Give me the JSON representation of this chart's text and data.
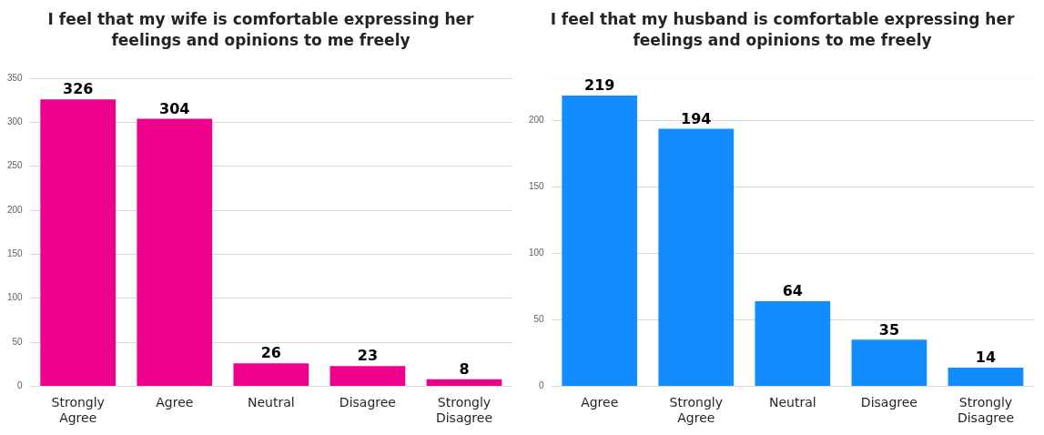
{
  "chart_data": [
    {
      "type": "bar",
      "title": "I feel that my wife is comfortable expressing her feelings and opinions to me freely",
      "categories": [
        "Strongly Agree",
        "Agree",
        "Neutral",
        "Disagree",
        "Strongly Disagree"
      ],
      "values": [
        326,
        304,
        26,
        23,
        8
      ],
      "color": "#ec008c",
      "ylim": [
        0,
        350
      ],
      "yticks": [
        0,
        50,
        100,
        150,
        200,
        250,
        300,
        350
      ],
      "grid": "y",
      "data_labels": true
    },
    {
      "type": "bar",
      "title": "I feel that my husband is comfortable expressing her feelings and opinions to me freely",
      "categories": [
        "Agree",
        "Strongly Agree",
        "Neutral",
        "Disagree",
        "Strongly Disagree"
      ],
      "values": [
        219,
        194,
        64,
        35,
        14
      ],
      "color": "#118dff",
      "ylim": [
        0,
        232
      ],
      "yticks": [
        0,
        50,
        100,
        150,
        200
      ],
      "grid": "y",
      "data_labels": true
    }
  ]
}
